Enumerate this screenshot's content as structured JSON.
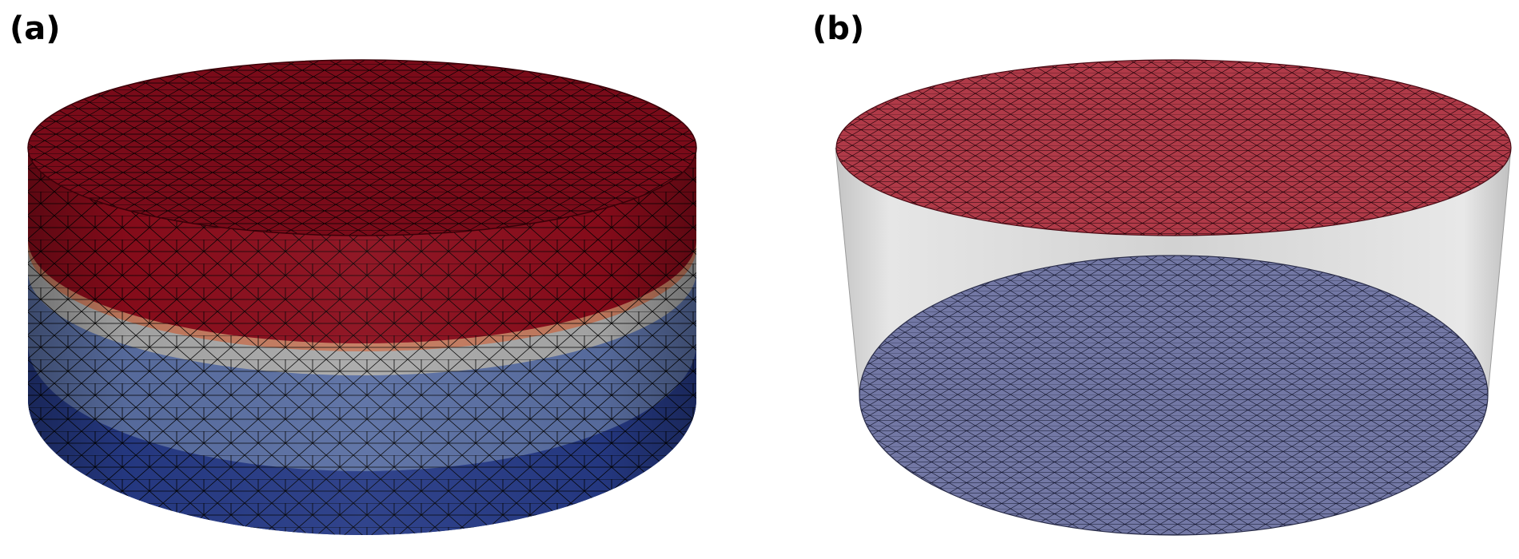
{
  "panels": [
    {
      "label": "(a)"
    },
    {
      "label": "(b)"
    }
  ],
  "colors": {
    "layer_top": "#7a0b19",
    "layer_top_side": "#8b0c1b",
    "layer_salmon": "#c47a5e",
    "layer_gray": "#a9a9a9",
    "layer_lightblue": "#5a6fa3",
    "layer_darkblue": "#263a86",
    "panel_b_top": "#b03a48",
    "panel_b_bottom": "#7378a5",
    "panel_b_wall": "#d8d8d8",
    "mesh_line": "#000000"
  },
  "icons": [
    "mesh-cylinder-layered",
    "mesh-cylinder-hollow"
  ]
}
